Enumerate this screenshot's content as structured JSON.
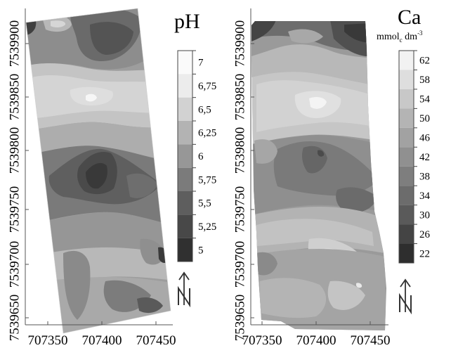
{
  "panels": [
    {
      "id": "ph",
      "title": "pH",
      "unit": null,
      "legend": {
        "labels": [
          "7",
          "6,75",
          "6,5",
          "6,25",
          "6",
          "5,75",
          "5,5",
          "5,25",
          "5"
        ],
        "colors": [
          "#fafafa",
          "#ececec",
          "#d2d2d2",
          "#b3b3b3",
          "#979797",
          "#7b7b7b",
          "#5e5e5e",
          "#484848",
          "#303030"
        ]
      },
      "x_ticks": [
        "707350",
        "707400",
        "707450"
      ],
      "y_ticks": [
        "7539900",
        "7539850",
        "7539800",
        "7539750",
        "7539700",
        "7539650"
      ]
    },
    {
      "id": "ca",
      "title": "Ca",
      "unit": {
        "prefix": "mmol",
        "subscript": "c",
        "middle": " dm",
        "superscript": "-3"
      },
      "legend": {
        "labels": [
          "62",
          "58",
          "54",
          "50",
          "46",
          "42",
          "38",
          "34",
          "30",
          "26",
          "22"
        ],
        "colors": [
          "#f2f2f2",
          "#dedede",
          "#c8c8c8",
          "#b4b4b4",
          "#a2a2a2",
          "#909090",
          "#7e7e7e",
          "#6c6c6c",
          "#5a5a5a",
          "#444444",
          "#2e2e2e"
        ]
      },
      "x_ticks": [
        "707350",
        "707400",
        "707450"
      ],
      "y_ticks": [
        "7539900",
        "7539850",
        "7539800",
        "7539750",
        "7539700",
        "7539650"
      ]
    }
  ],
  "north_arrow": {
    "label": "N",
    "icon": "north-arrow-icon"
  }
}
